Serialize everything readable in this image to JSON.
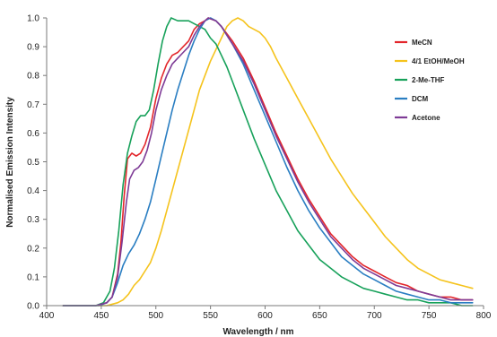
{
  "chart_data": {
    "type": "line",
    "title": "",
    "xlabel": "Wavelength / nm",
    "ylabel": "Normalised Emission Intensity",
    "xlim": [
      400,
      800
    ],
    "ylim": [
      0,
      1.0
    ],
    "x_ticks": [
      "400",
      "450",
      "500",
      "550",
      "600",
      "650",
      "700",
      "750",
      "800"
    ],
    "y_ticks": [
      "0.0",
      "0.1",
      "0.2",
      "0.3",
      "0.4",
      "0.5",
      "0.6",
      "0.7",
      "0.8",
      "0.9",
      "1.0"
    ],
    "legend_position": "top-right",
    "grid": false,
    "series": [
      {
        "name": "MeCN",
        "color": "#e3262b",
        "points": [
          [
            415,
            0.0
          ],
          [
            445,
            0.0
          ],
          [
            455,
            0.01
          ],
          [
            460,
            0.03
          ],
          [
            465,
            0.11
          ],
          [
            468,
            0.22
          ],
          [
            471,
            0.38
          ],
          [
            474,
            0.51
          ],
          [
            478,
            0.53
          ],
          [
            482,
            0.52
          ],
          [
            486,
            0.53
          ],
          [
            490,
            0.56
          ],
          [
            495,
            0.62
          ],
          [
            500,
            0.72
          ],
          [
            505,
            0.79
          ],
          [
            510,
            0.84
          ],
          [
            515,
            0.87
          ],
          [
            520,
            0.88
          ],
          [
            525,
            0.9
          ],
          [
            530,
            0.92
          ],
          [
            535,
            0.96
          ],
          [
            540,
            0.98
          ],
          [
            545,
            0.99
          ],
          [
            548,
            1.0
          ],
          [
            555,
            0.99
          ],
          [
            560,
            0.97
          ],
          [
            570,
            0.92
          ],
          [
            580,
            0.86
          ],
          [
            590,
            0.78
          ],
          [
            600,
            0.69
          ],
          [
            610,
            0.6
          ],
          [
            620,
            0.52
          ],
          [
            630,
            0.44
          ],
          [
            640,
            0.37
          ],
          [
            650,
            0.31
          ],
          [
            660,
            0.25
          ],
          [
            670,
            0.21
          ],
          [
            680,
            0.17
          ],
          [
            690,
            0.14
          ],
          [
            700,
            0.12
          ],
          [
            710,
            0.1
          ],
          [
            720,
            0.08
          ],
          [
            730,
            0.07
          ],
          [
            740,
            0.05
          ],
          [
            750,
            0.04
          ],
          [
            760,
            0.03
          ],
          [
            770,
            0.03
          ],
          [
            780,
            0.02
          ],
          [
            790,
            0.02
          ]
        ]
      },
      {
        "name": "4/1 EtOH/MeOH",
        "color": "#f5c31c",
        "points": [
          [
            415,
            0.0
          ],
          [
            455,
            0.0
          ],
          [
            465,
            0.01
          ],
          [
            470,
            0.02
          ],
          [
            475,
            0.04
          ],
          [
            480,
            0.07
          ],
          [
            485,
            0.09
          ],
          [
            490,
            0.12
          ],
          [
            495,
            0.15
          ],
          [
            500,
            0.2
          ],
          [
            505,
            0.26
          ],
          [
            510,
            0.33
          ],
          [
            515,
            0.4
          ],
          [
            520,
            0.47
          ],
          [
            525,
            0.54
          ],
          [
            530,
            0.61
          ],
          [
            535,
            0.68
          ],
          [
            540,
            0.75
          ],
          [
            545,
            0.8
          ],
          [
            550,
            0.85
          ],
          [
            555,
            0.89
          ],
          [
            560,
            0.93
          ],
          [
            565,
            0.97
          ],
          [
            570,
            0.99
          ],
          [
            575,
            1.0
          ],
          [
            580,
            0.99
          ],
          [
            585,
            0.97
          ],
          [
            590,
            0.96
          ],
          [
            595,
            0.95
          ],
          [
            600,
            0.93
          ],
          [
            605,
            0.9
          ],
          [
            610,
            0.86
          ],
          [
            620,
            0.79
          ],
          [
            630,
            0.72
          ],
          [
            640,
            0.65
          ],
          [
            650,
            0.58
          ],
          [
            660,
            0.51
          ],
          [
            670,
            0.45
          ],
          [
            680,
            0.39
          ],
          [
            690,
            0.34
          ],
          [
            700,
            0.29
          ],
          [
            710,
            0.24
          ],
          [
            720,
            0.2
          ],
          [
            730,
            0.16
          ],
          [
            740,
            0.13
          ],
          [
            750,
            0.11
          ],
          [
            760,
            0.09
          ],
          [
            770,
            0.08
          ],
          [
            780,
            0.07
          ],
          [
            790,
            0.06
          ]
        ]
      },
      {
        "name": "2-Me-THF",
        "color": "#17a15a",
        "points": [
          [
            415,
            0.0
          ],
          [
            445,
            0.0
          ],
          [
            452,
            0.01
          ],
          [
            458,
            0.05
          ],
          [
            462,
            0.13
          ],
          [
            466,
            0.26
          ],
          [
            470,
            0.42
          ],
          [
            474,
            0.53
          ],
          [
            478,
            0.59
          ],
          [
            482,
            0.64
          ],
          [
            486,
            0.66
          ],
          [
            490,
            0.66
          ],
          [
            494,
            0.68
          ],
          [
            498,
            0.75
          ],
          [
            502,
            0.84
          ],
          [
            506,
            0.92
          ],
          [
            510,
            0.97
          ],
          [
            514,
            1.0
          ],
          [
            520,
            0.99
          ],
          [
            525,
            0.99
          ],
          [
            530,
            0.99
          ],
          [
            535,
            0.98
          ],
          [
            540,
            0.97
          ],
          [
            545,
            0.96
          ],
          [
            550,
            0.93
          ],
          [
            555,
            0.91
          ],
          [
            560,
            0.87
          ],
          [
            565,
            0.83
          ],
          [
            570,
            0.78
          ],
          [
            580,
            0.68
          ],
          [
            590,
            0.58
          ],
          [
            600,
            0.49
          ],
          [
            610,
            0.4
          ],
          [
            620,
            0.33
          ],
          [
            630,
            0.26
          ],
          [
            640,
            0.21
          ],
          [
            650,
            0.16
          ],
          [
            660,
            0.13
          ],
          [
            670,
            0.1
          ],
          [
            680,
            0.08
          ],
          [
            690,
            0.06
          ],
          [
            700,
            0.05
          ],
          [
            710,
            0.04
          ],
          [
            720,
            0.03
          ],
          [
            730,
            0.02
          ],
          [
            740,
            0.02
          ],
          [
            750,
            0.01
          ],
          [
            760,
            0.01
          ],
          [
            770,
            0.01
          ],
          [
            780,
            0.0
          ],
          [
            790,
            0.0
          ]
        ]
      },
      {
        "name": "DCM",
        "color": "#2a7ec2",
        "points": [
          [
            415,
            0.0
          ],
          [
            448,
            0.0
          ],
          [
            455,
            0.01
          ],
          [
            460,
            0.03
          ],
          [
            465,
            0.08
          ],
          [
            470,
            0.14
          ],
          [
            475,
            0.18
          ],
          [
            480,
            0.21
          ],
          [
            485,
            0.25
          ],
          [
            490,
            0.3
          ],
          [
            495,
            0.36
          ],
          [
            500,
            0.44
          ],
          [
            505,
            0.52
          ],
          [
            510,
            0.6
          ],
          [
            515,
            0.68
          ],
          [
            520,
            0.75
          ],
          [
            525,
            0.81
          ],
          [
            530,
            0.87
          ],
          [
            535,
            0.92
          ],
          [
            540,
            0.96
          ],
          [
            545,
            0.99
          ],
          [
            550,
            1.0
          ],
          [
            555,
            0.99
          ],
          [
            560,
            0.97
          ],
          [
            570,
            0.91
          ],
          [
            580,
            0.84
          ],
          [
            590,
            0.75
          ],
          [
            600,
            0.66
          ],
          [
            610,
            0.57
          ],
          [
            620,
            0.48
          ],
          [
            630,
            0.4
          ],
          [
            640,
            0.33
          ],
          [
            650,
            0.27
          ],
          [
            660,
            0.22
          ],
          [
            670,
            0.17
          ],
          [
            680,
            0.14
          ],
          [
            690,
            0.11
          ],
          [
            700,
            0.09
          ],
          [
            710,
            0.07
          ],
          [
            720,
            0.05
          ],
          [
            730,
            0.04
          ],
          [
            740,
            0.03
          ],
          [
            750,
            0.02
          ],
          [
            760,
            0.02
          ],
          [
            770,
            0.01
          ],
          [
            780,
            0.01
          ],
          [
            790,
            0.01
          ]
        ]
      },
      {
        "name": "Acetone",
        "color": "#7e3b96",
        "points": [
          [
            415,
            0.0
          ],
          [
            445,
            0.0
          ],
          [
            455,
            0.01
          ],
          [
            460,
            0.03
          ],
          [
            465,
            0.1
          ],
          [
            469,
            0.22
          ],
          [
            473,
            0.36
          ],
          [
            476,
            0.44
          ],
          [
            480,
            0.47
          ],
          [
            484,
            0.48
          ],
          [
            488,
            0.5
          ],
          [
            492,
            0.54
          ],
          [
            496,
            0.6
          ],
          [
            500,
            0.68
          ],
          [
            505,
            0.75
          ],
          [
            510,
            0.8
          ],
          [
            515,
            0.84
          ],
          [
            520,
            0.86
          ],
          [
            525,
            0.88
          ],
          [
            530,
            0.9
          ],
          [
            535,
            0.94
          ],
          [
            540,
            0.97
          ],
          [
            545,
            0.99
          ],
          [
            548,
            1.0
          ],
          [
            555,
            0.99
          ],
          [
            560,
            0.97
          ],
          [
            570,
            0.91
          ],
          [
            580,
            0.85
          ],
          [
            590,
            0.77
          ],
          [
            600,
            0.68
          ],
          [
            610,
            0.59
          ],
          [
            620,
            0.51
          ],
          [
            630,
            0.43
          ],
          [
            640,
            0.36
          ],
          [
            650,
            0.3
          ],
          [
            660,
            0.24
          ],
          [
            670,
            0.2
          ],
          [
            680,
            0.16
          ],
          [
            690,
            0.13
          ],
          [
            700,
            0.11
          ],
          [
            710,
            0.09
          ],
          [
            720,
            0.07
          ],
          [
            730,
            0.06
          ],
          [
            740,
            0.05
          ],
          [
            750,
            0.04
          ],
          [
            760,
            0.03
          ],
          [
            770,
            0.02
          ],
          [
            780,
            0.02
          ],
          [
            790,
            0.02
          ]
        ]
      }
    ]
  }
}
